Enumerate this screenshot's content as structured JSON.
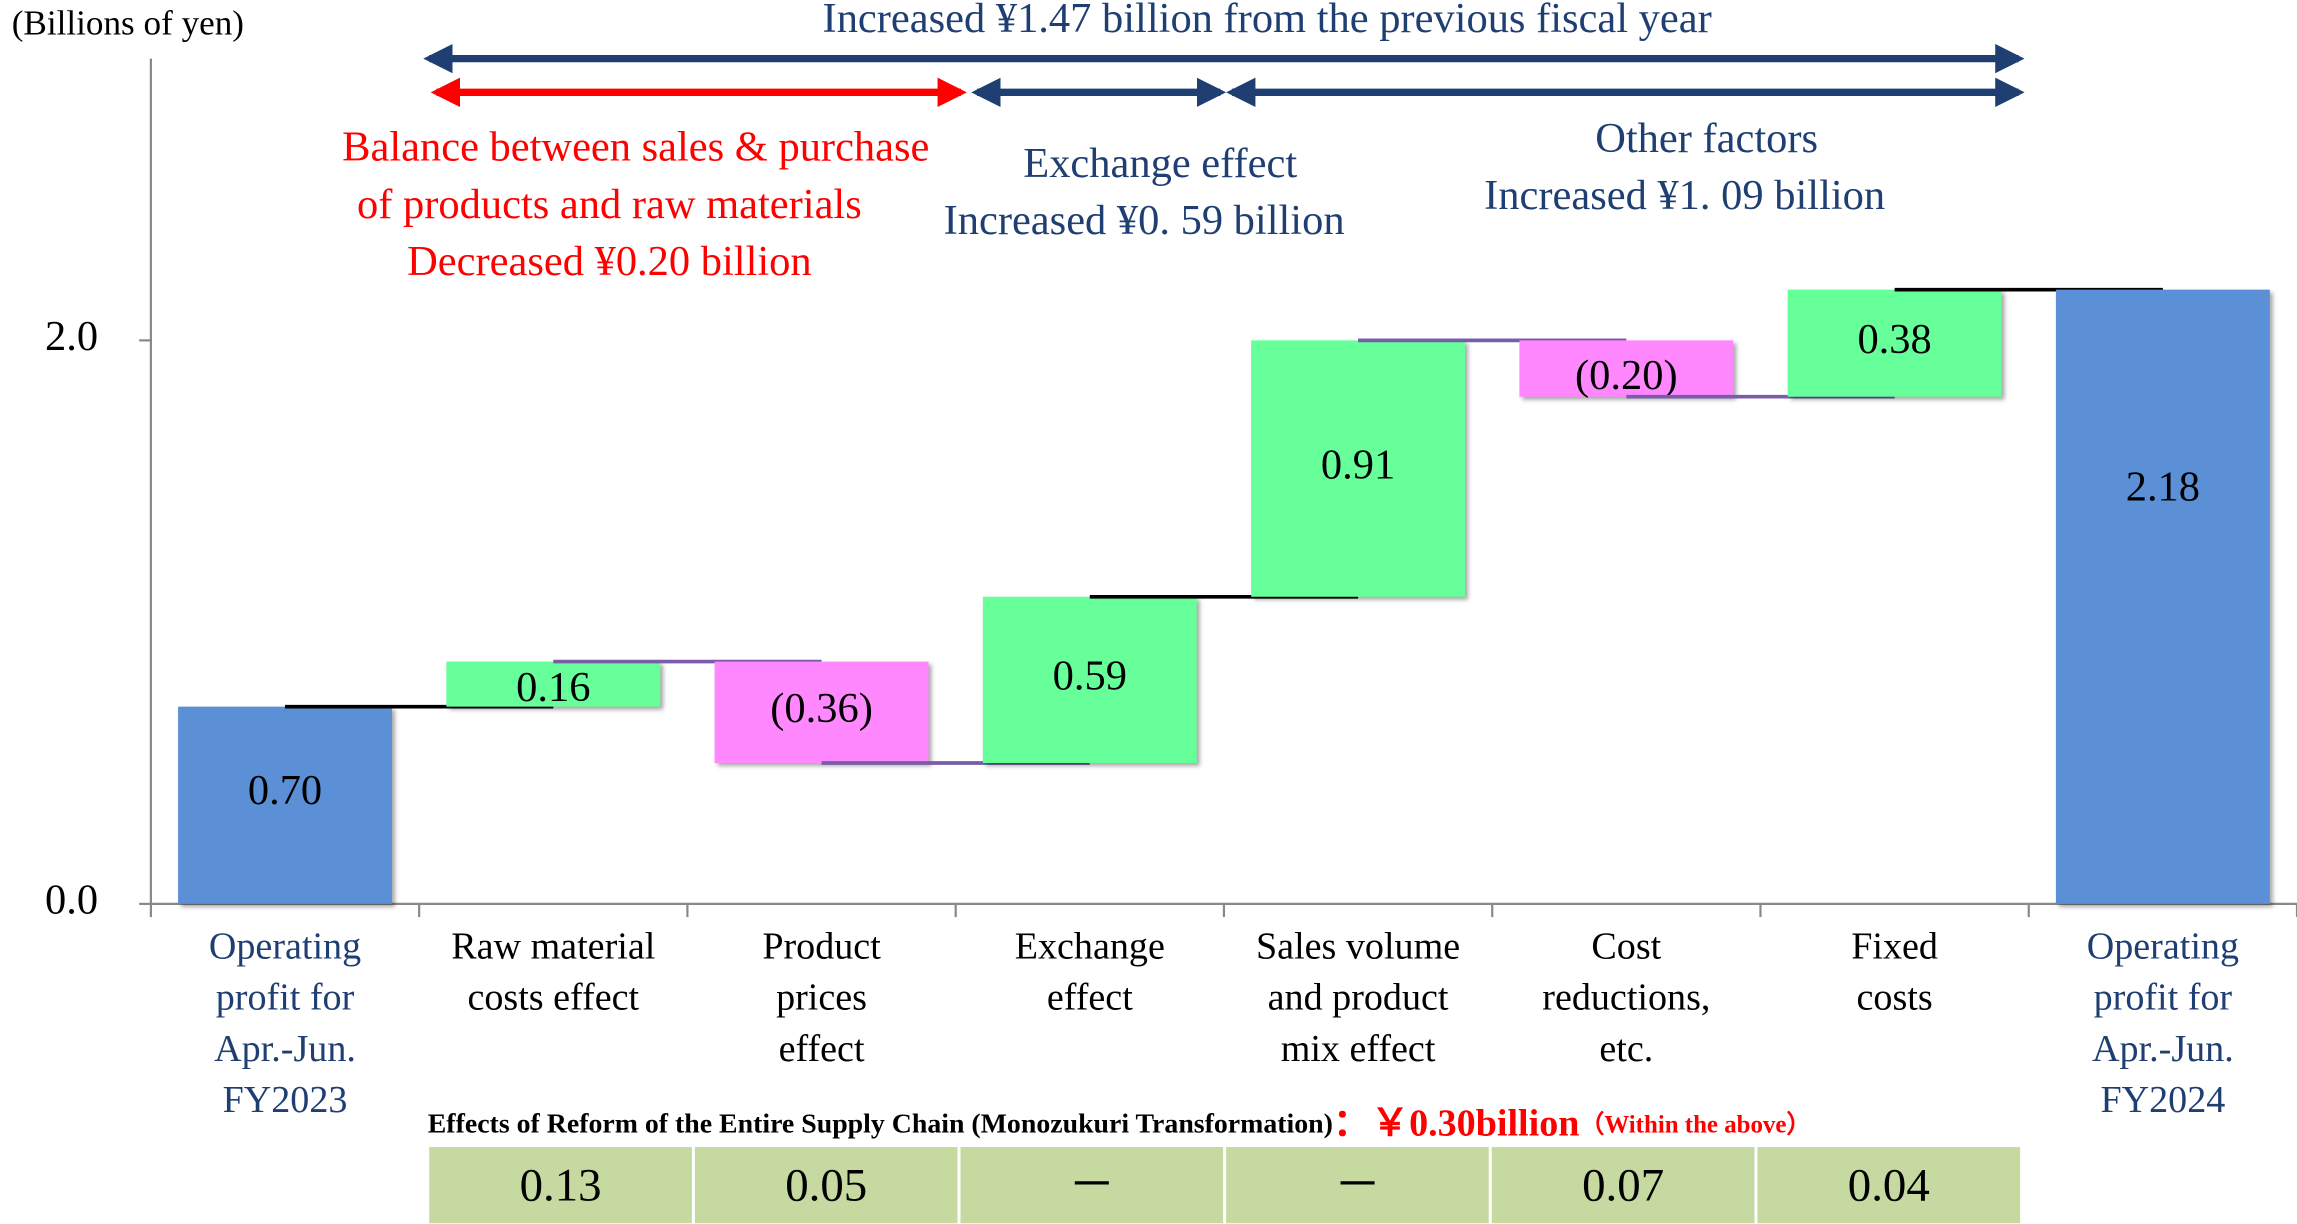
{
  "chart_data": {
    "type": "waterfall",
    "unit_label": "(Billions of yen)",
    "categories": [
      "Operating\nprofit for\nApr.-Jun.\nFY2023",
      "Raw material\ncosts effect",
      "Product\nprices\neffect",
      "Exchange\neffect",
      "Sales volume\nand product\nmix effect",
      "Cost\nreductions,\netc.",
      "Fixed\ncosts",
      "Operating\nprofit for\nApr.-Jun.\nFY2024"
    ],
    "values": [
      0.7,
      0.16,
      -0.36,
      0.59,
      0.91,
      -0.2,
      0.38,
      2.18
    ],
    "value_labels": [
      "0.70",
      "0.16",
      "(0.36)",
      "0.59",
      "0.91",
      "(0.20)",
      "0.38",
      "2.18"
    ],
    "kinds": [
      "total",
      "delta",
      "delta",
      "delta",
      "delta",
      "delta",
      "delta",
      "total"
    ],
    "colors": {
      "total": "#5b8fd6",
      "increase": "#66ff99",
      "decrease": "#ff88ff"
    },
    "ylim": [
      0,
      3.0
    ],
    "yticks": [
      {
        "value": 0,
        "label": "0.0"
      },
      {
        "value": 2,
        "label": "2.0"
      }
    ],
    "annotations": {
      "total": "Increased ¥1.47 billion from the previous fiscal year",
      "balance": [
        "Balance between sales & purchase",
        "of products and raw materials",
        "Decreased ¥0.20 billion"
      ],
      "exchange": [
        "Exchange effect",
        "Increased ¥0. 59 billion"
      ],
      "other": [
        "Other factors",
        "Increased ¥1. 09 billion"
      ]
    },
    "supply_chain": {
      "title": "Effects of Reform of the Entire Supply Chain (Monozukuri Transformation)",
      "total": "：￥0.30billion",
      "note": "（Within the above）",
      "cells": [
        "0.13",
        "0.05",
        "－",
        "－",
        "0.07",
        "0.04"
      ]
    }
  }
}
